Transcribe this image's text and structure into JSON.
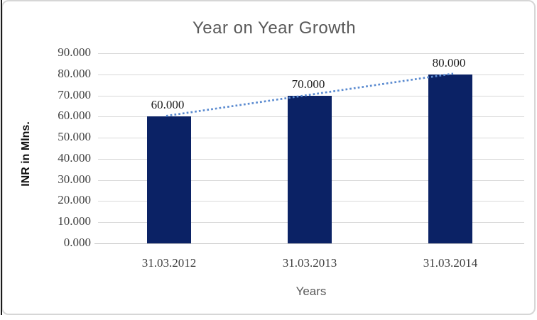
{
  "chart_data": {
    "type": "bar",
    "title": "Year on Year Growth",
    "xlabel": "Years",
    "ylabel": "INR in Mlns.",
    "categories": [
      "31.03.2012",
      "31.03.2013",
      "31.03.2014"
    ],
    "values": [
      60,
      70,
      80
    ],
    "data_labels": [
      "60.000",
      "70.000",
      "80.000"
    ],
    "ylim": [
      0,
      90
    ],
    "y_tick_values": [
      0,
      10,
      20,
      30,
      40,
      50,
      60,
      70,
      80,
      90
    ],
    "y_tick_labels": [
      "0.000",
      "10.000",
      "20.000",
      "30.000",
      "40.000",
      "50.000",
      "60.000",
      "70.000",
      "80.000",
      "90.000"
    ],
    "grid": true,
    "legend": "none",
    "trendline": {
      "style": "dotted",
      "through_values": [
        60,
        80
      ]
    },
    "colors": {
      "bar": "#0b2265",
      "trend": "#5b8bd0",
      "grid": "#d9d9d9",
      "axis_line": "#c6c6c6",
      "title": "#595959",
      "axis_title": "#595959",
      "tick_label": "#404040",
      "data_label": "#1c1c1c",
      "y_axis_title": "#111111"
    }
  }
}
